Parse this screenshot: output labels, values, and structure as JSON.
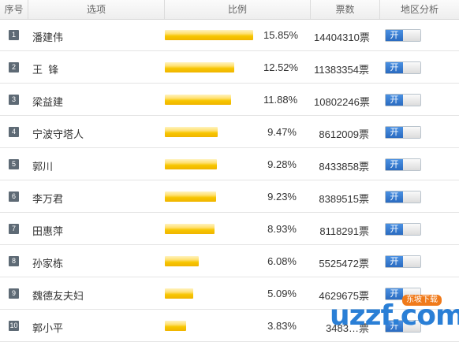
{
  "header": {
    "col_index": "序号",
    "col_option": "选项",
    "col_ratio": "比例",
    "col_votes": "票数",
    "col_region": "地区分析"
  },
  "rows": [
    {
      "index": "1",
      "name": "潘建伟",
      "percent": "15.85%",
      "percent_value": 15.85,
      "votes": "14404310票",
      "toggle": "开"
    },
    {
      "index": "2",
      "name": "王  锋",
      "percent": "12.52%",
      "percent_value": 12.52,
      "votes": "11383354票",
      "toggle": "开"
    },
    {
      "index": "3",
      "name": "梁益建",
      "percent": "11.88%",
      "percent_value": 11.88,
      "votes": "10802246票",
      "toggle": "开"
    },
    {
      "index": "4",
      "name": "宁波守塔人",
      "percent": "9.47%",
      "percent_value": 9.47,
      "votes": "8612009票",
      "toggle": "开"
    },
    {
      "index": "5",
      "name": "郭川",
      "percent": "9.28%",
      "percent_value": 9.28,
      "votes": "8433858票",
      "toggle": "开"
    },
    {
      "index": "6",
      "name": "李万君",
      "percent": "9.23%",
      "percent_value": 9.23,
      "votes": "8389515票",
      "toggle": "开"
    },
    {
      "index": "7",
      "name": "田惠萍",
      "percent": "8.93%",
      "percent_value": 8.93,
      "votes": "8118291票",
      "toggle": "开"
    },
    {
      "index": "8",
      "name": "孙家栋",
      "percent": "6.08%",
      "percent_value": 6.08,
      "votes": "5525472票",
      "toggle": "开"
    },
    {
      "index": "9",
      "name": "魏德友夫妇",
      "percent": "5.09%",
      "percent_value": 5.09,
      "votes": "4629675票",
      "toggle": "开"
    },
    {
      "index": "10",
      "name": "郭小平",
      "percent": "3.83%",
      "percent_value": 3.83,
      "votes": "3483…票",
      "toggle": "开"
    }
  ],
  "watermark": {
    "text": "uzzf.com",
    "badge": "东坡下载"
  },
  "colors": {
    "bar": "#f7c600",
    "toggle_on": "#2a6bc0",
    "index_badge": "#5e6a75"
  }
}
